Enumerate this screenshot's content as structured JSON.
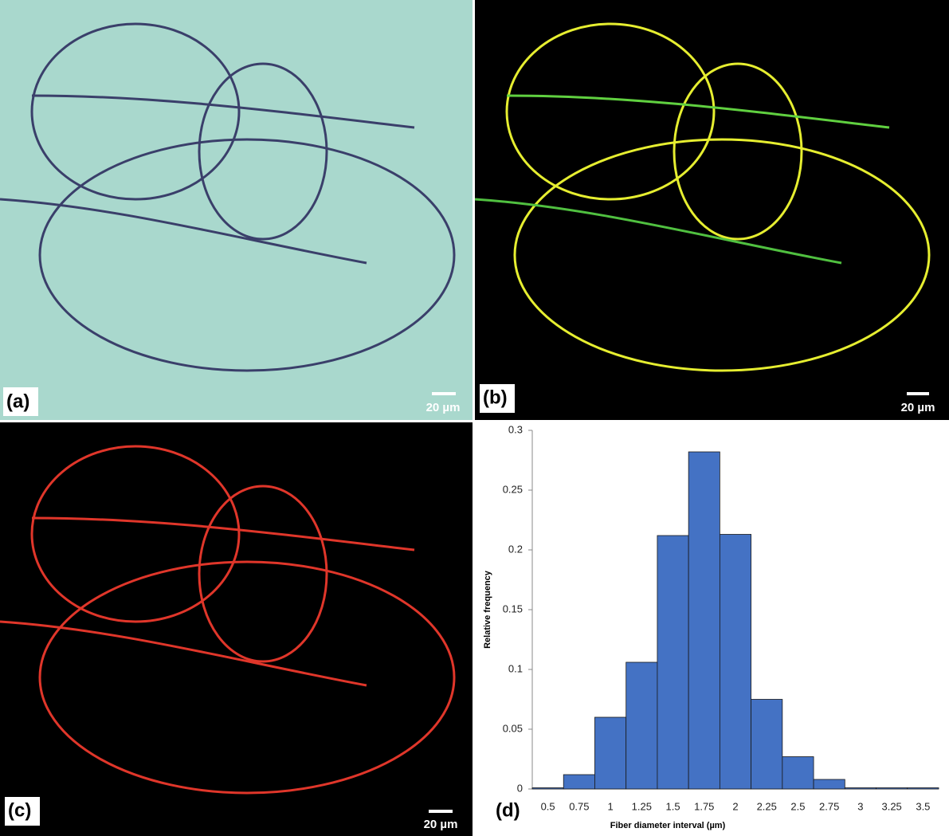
{
  "panels": [
    {
      "label": "(a)",
      "scale_bar": "20 µm"
    },
    {
      "label": "(b)",
      "scale_bar": "20 µm"
    },
    {
      "label": "(c)",
      "scale_bar": "20 µm"
    },
    {
      "label": "(d)"
    }
  ],
  "chart_data": {
    "type": "bar",
    "x_label": "Fiber diameter interval (µm)",
    "y_label": "Relative frequency",
    "categories": [
      "0.5",
      "0.75",
      "1",
      "1.25",
      "1.5",
      "1.75",
      "2",
      "2.25",
      "2.5",
      "2.75",
      "3",
      "3.25",
      "3.5"
    ],
    "values": [
      0.001,
      0.012,
      0.06,
      0.106,
      0.212,
      0.282,
      0.213,
      0.075,
      0.027,
      0.008,
      0.001,
      0.001,
      0.001
    ],
    "color": "#4472c4",
    "ylim": [
      0,
      0.3
    ],
    "yticks": [
      0,
      0.05,
      0.1,
      0.15,
      0.2,
      0.25,
      0.3
    ]
  }
}
